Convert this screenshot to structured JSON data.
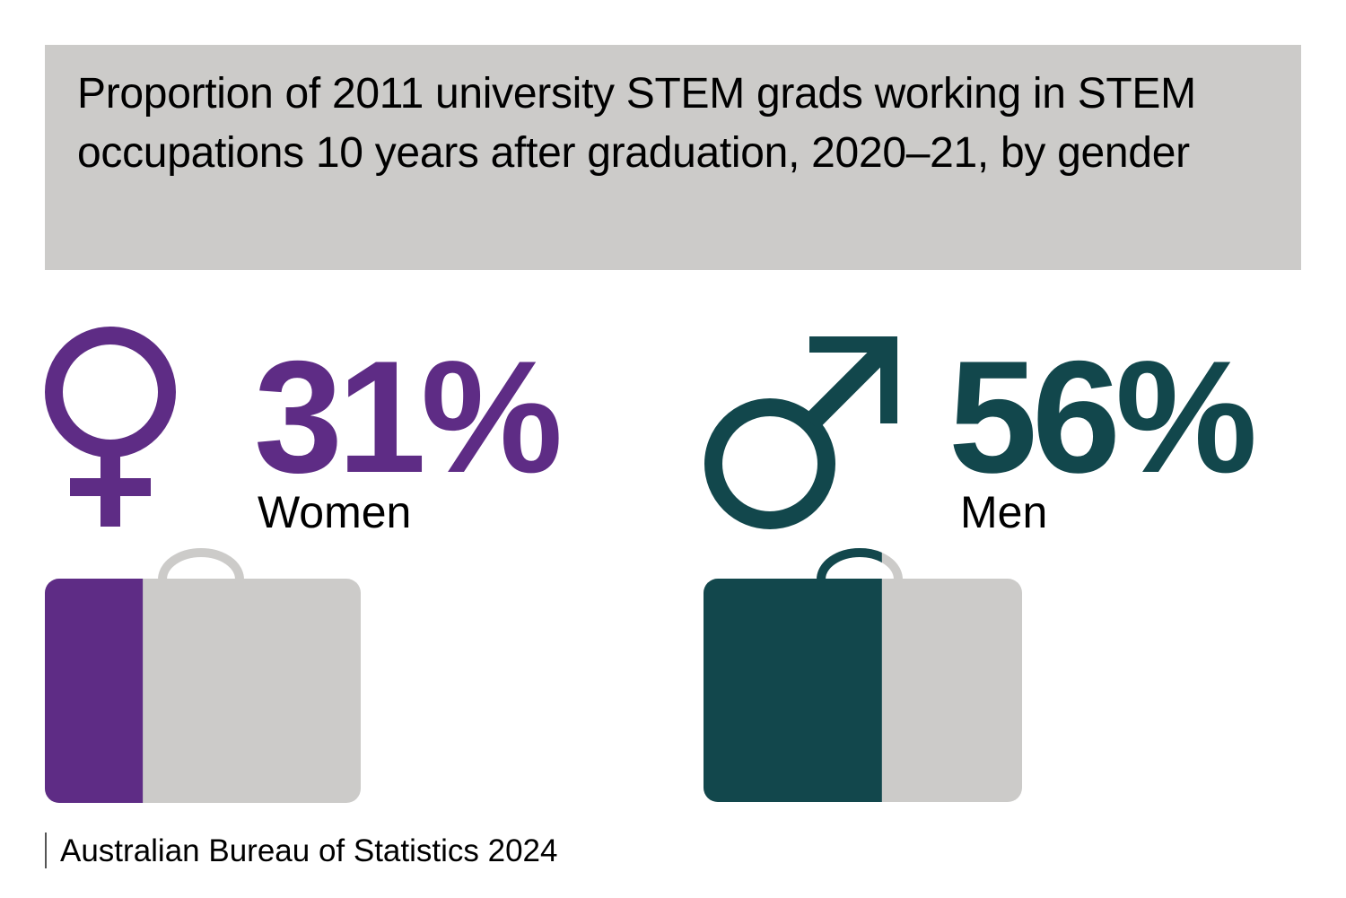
{
  "title": "Proportion of 2011 university STEM grads working in STEM occupations 10 years after graduation, 2020–21, by gender",
  "source": "Australian Bureau of Statistics 2024",
  "colors": {
    "women": "#5e2c85",
    "men": "#12474c",
    "empty": "#cccbc9",
    "title_bg": "#cccbc9"
  },
  "chart_data": {
    "type": "bar",
    "title": "Proportion of 2011 university STEM grads working in STEM occupations 10 years after graduation, 2020–21, by gender",
    "categories": [
      "Women",
      "Men"
    ],
    "values": [
      31,
      56
    ],
    "value_labels": [
      "31%",
      "56%"
    ],
    "ylim": [
      0,
      100
    ],
    "icons": [
      "female-symbol-icon",
      "male-symbol-icon",
      "briefcase-icon"
    ]
  }
}
